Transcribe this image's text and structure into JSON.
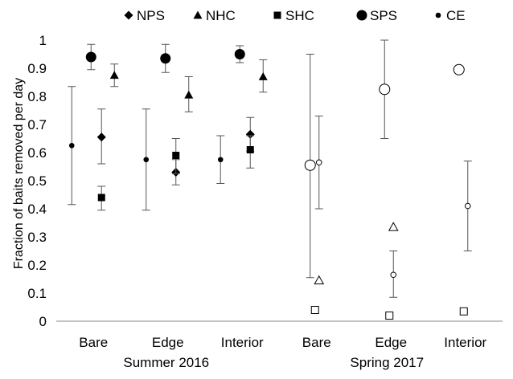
{
  "chart_data": {
    "type": "scatter",
    "ylabel": "Fraction of baits removed per day",
    "ylim": [
      0,
      1
    ],
    "yticks": [
      "0",
      "0.1",
      "0.2",
      "0.3",
      "0.4",
      "0.5",
      "0.6",
      "0.7",
      "0.8",
      "0.9",
      "1"
    ],
    "categories": [
      "Bare",
      "Edge",
      "Interior",
      "Bare",
      "Edge",
      "Interior"
    ],
    "groups": [
      {
        "label": "Summer 2016",
        "categories": [
          0,
          1,
          2
        ]
      },
      {
        "label": "Spring 2017",
        "categories": [
          3,
          4,
          5
        ]
      }
    ],
    "legend_placement": "top",
    "series": [
      {
        "name": "NPS",
        "marker": "diamond",
        "size": "medium",
        "points": [
          {
            "cat": 0,
            "y": 0.655,
            "err": [
              0.56,
              0.755
            ],
            "filled": true
          },
          {
            "cat": 1,
            "y": 0.53,
            "err": [
              0.485,
              0.575
            ],
            "filled": true
          },
          {
            "cat": 2,
            "y": 0.665,
            "err": [
              0.605,
              0.725
            ],
            "filled": true
          }
        ]
      },
      {
        "name": "NHC",
        "marker": "triangle",
        "size": "medium",
        "points": [
          {
            "cat": 0,
            "y": 0.875,
            "err": [
              0.835,
              0.915
            ],
            "filled": true
          },
          {
            "cat": 1,
            "y": 0.805,
            "err": [
              0.745,
              0.87
            ],
            "filled": true
          },
          {
            "cat": 2,
            "y": 0.87,
            "err": [
              0.815,
              0.93
            ],
            "filled": true
          },
          {
            "cat": 3,
            "y": 0.145,
            "filled": false
          },
          {
            "cat": 4,
            "y": 0.335,
            "filled": false
          }
        ]
      },
      {
        "name": "SHC",
        "marker": "square",
        "size": "medium",
        "points": [
          {
            "cat": 0,
            "y": 0.44,
            "err": [
              0.395,
              0.48
            ],
            "filled": true
          },
          {
            "cat": 1,
            "y": 0.59,
            "err": [
              0.525,
              0.65
            ],
            "filled": true
          },
          {
            "cat": 2,
            "y": 0.61,
            "err": [
              0.545,
              0.66
            ],
            "filled": true
          },
          {
            "cat": 3,
            "y": 0.04,
            "filled": false
          },
          {
            "cat": 4,
            "y": 0.02,
            "filled": false
          },
          {
            "cat": 5,
            "y": 0.035,
            "filled": false
          }
        ]
      },
      {
        "name": "SPS",
        "marker": "circle",
        "size": "large",
        "points": [
          {
            "cat": 0,
            "y": 0.94,
            "err": [
              0.895,
              0.985
            ],
            "filled": true
          },
          {
            "cat": 1,
            "y": 0.935,
            "err": [
              0.885,
              0.985
            ],
            "filled": true
          },
          {
            "cat": 2,
            "y": 0.95,
            "err": [
              0.92,
              0.98
            ],
            "filled": true
          },
          {
            "cat": 3,
            "y": 0.555,
            "err": [
              0.155,
              0.95
            ],
            "filled": false
          },
          {
            "cat": 4,
            "y": 0.825,
            "err": [
              0.65,
              1.0
            ],
            "filled": false
          },
          {
            "cat": 5,
            "y": 0.895,
            "filled": false
          }
        ]
      },
      {
        "name": "CE",
        "marker": "circle",
        "size": "small",
        "points": [
          {
            "cat": 0,
            "y": 0.625,
            "err": [
              0.415,
              0.835
            ],
            "filled": true
          },
          {
            "cat": 1,
            "y": 0.575,
            "err": [
              0.395,
              0.755
            ],
            "filled": true
          },
          {
            "cat": 2,
            "y": 0.575,
            "err": [
              0.49,
              0.66
            ],
            "filled": true
          },
          {
            "cat": 3,
            "y": 0.565,
            "err": [
              0.4,
              0.73
            ],
            "filled": false
          },
          {
            "cat": 4,
            "y": 0.165,
            "err": [
              0.085,
              0.25
            ],
            "filled": false
          },
          {
            "cat": 5,
            "y": 0.41,
            "err": [
              0.25,
              0.57
            ],
            "filled": false
          }
        ]
      }
    ]
  }
}
